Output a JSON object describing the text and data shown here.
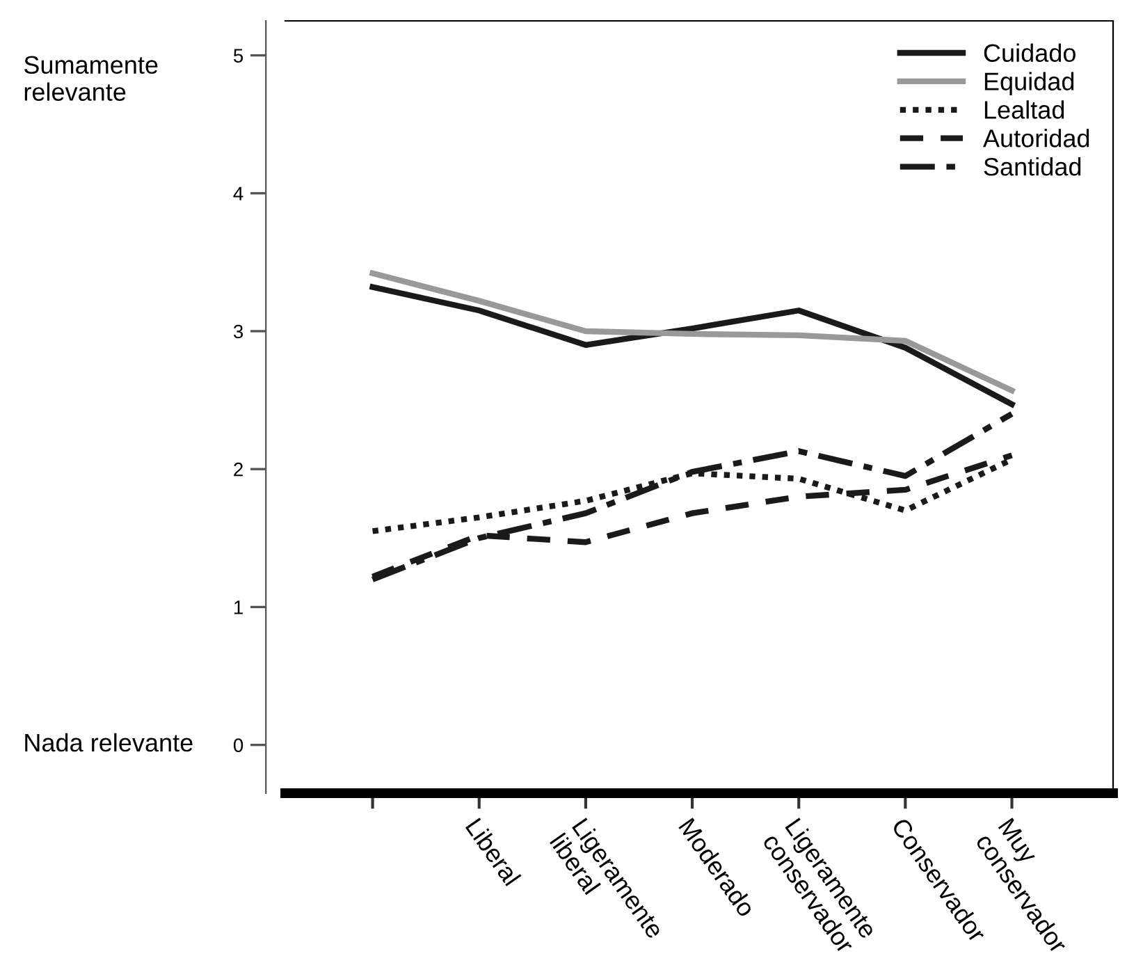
{
  "chart_data": {
    "type": "line",
    "categories": [
      null,
      "Liberal",
      "Ligeramente\nliberal",
      "Moderado",
      "Ligeramente\nconservador",
      "Conservador",
      "Muy\nconservador"
    ],
    "series": [
      {
        "name": "Cuidado",
        "color": "#1a1a1a",
        "line_style": "solid",
        "values": [
          3.32,
          3.15,
          2.9,
          3.02,
          3.15,
          2.88,
          2.47
        ]
      },
      {
        "name": "Equidad",
        "color": "#999999",
        "line_style": "solid",
        "values": [
          3.42,
          3.22,
          3.0,
          2.98,
          2.97,
          2.93,
          2.57
        ]
      },
      {
        "name": "Lealtad",
        "color": "#1a1a1a",
        "line_style": "dotted",
        "values": [
          1.55,
          1.65,
          1.77,
          1.97,
          1.93,
          1.7,
          2.07
        ]
      },
      {
        "name": "Autoridad",
        "color": "#1a1a1a",
        "line_style": "dashed",
        "values": [
          1.22,
          1.52,
          1.47,
          1.68,
          1.8,
          1.85,
          2.1
        ]
      },
      {
        "name": "Santidad",
        "color": "#1a1a1a",
        "line_style": "dashdot",
        "values": [
          1.2,
          1.5,
          1.68,
          1.98,
          2.13,
          1.95,
          2.4
        ]
      }
    ],
    "ylim": [
      -0.35,
      5.25
    ],
    "yticks": [
      0,
      1,
      2,
      3,
      4,
      5
    ],
    "annotations": [
      "Sumamente\nrelevante",
      "Nada relevante"
    ],
    "legend": "top right",
    "grid": false,
    "marker": "none"
  }
}
